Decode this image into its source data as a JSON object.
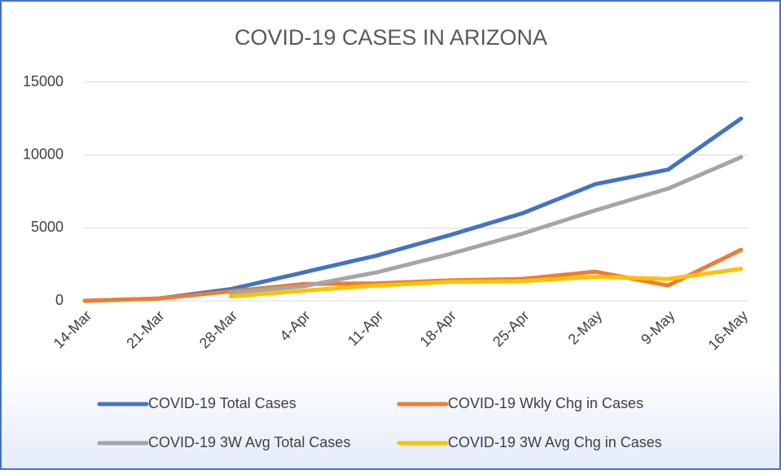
{
  "chart_data": {
    "type": "line",
    "title": "COVID-19 CASES IN ARIZONA",
    "categories": [
      "14-Mar",
      "21-Mar",
      "28-Mar",
      "4-Apr",
      "11-Apr",
      "18-Apr",
      "25-Apr",
      "2-May",
      "9-May",
      "16-May"
    ],
    "series": [
      {
        "name": "COVID-19 Total Cases",
        "color": "#4472c4",
        "values": [
          0,
          150,
          800,
          1950,
          3100,
          4500,
          6000,
          8000,
          9000,
          12500
        ]
      },
      {
        "name": "COVID-19 Wkly Chg in Cases",
        "color": "#ed7d31",
        "values": [
          0,
          150,
          650,
          1150,
          1200,
          1400,
          1500,
          2000,
          1050,
          3500
        ]
      },
      {
        "name": "COVID-19 3W Avg Total Cases",
        "color": "#a5a5a5",
        "values": [
          null,
          null,
          550,
          1000,
          1950,
          3200,
          4600,
          6200,
          7700,
          9850
        ]
      },
      {
        "name": "COVID-19 3W Avg Chg in Cases",
        "color": "#ffc000",
        "values": [
          null,
          null,
          300,
          700,
          1050,
          1300,
          1350,
          1650,
          1500,
          2200
        ]
      }
    ],
    "ylim": [
      0,
      15000
    ],
    "yticks": [
      0,
      5000,
      10000,
      15000
    ],
    "grid": true
  }
}
